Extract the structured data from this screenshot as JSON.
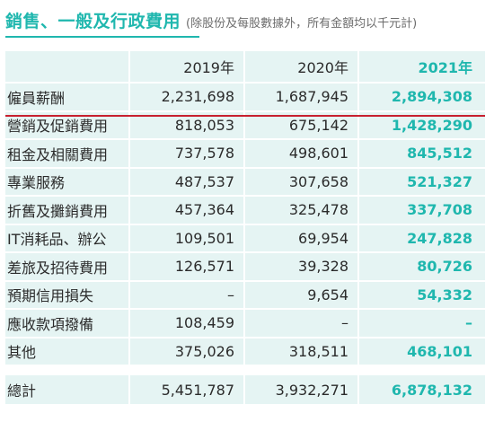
{
  "heading": {
    "title": "銷售、一般及行政費用",
    "subtitle": "(除股份及每股數據外，所有金額均以千元計)"
  },
  "table": {
    "columns": [
      "",
      "2019年",
      "2020年",
      "2021年"
    ],
    "rows": [
      {
        "label": "僱員薪酬",
        "y2019": "2,231,698",
        "y2020": "1,687,945",
        "y2021": "2,894,308"
      },
      {
        "label": "營銷及促銷費用",
        "y2019": "818,053",
        "y2020": "675,142",
        "y2021": "1,428,290"
      },
      {
        "label": "租金及相關費用",
        "y2019": "737,578",
        "y2020": "498,601",
        "y2021": "845,512"
      },
      {
        "label": "專業服務",
        "y2019": "487,537",
        "y2020": "307,658",
        "y2021": "521,327"
      },
      {
        "label": "折舊及攤銷費用",
        "y2019": "457,364",
        "y2020": "325,478",
        "y2021": "337,708"
      },
      {
        "label": "IT消耗品、辦公",
        "y2019": "109,501",
        "y2020": "69,954",
        "y2021": "247,828"
      },
      {
        "label": "差旅及招待費用",
        "y2019": "126,571",
        "y2020": "39,328",
        "y2021": "80,726"
      },
      {
        "label": "預期信用損失",
        "y2019": "–",
        "y2020": "9,654",
        "y2021": "54,332"
      },
      {
        "label": "應收款項撥備",
        "y2019": "108,459",
        "y2020": "–",
        "y2021": "–"
      },
      {
        "label": "其他",
        "y2019": "375,026",
        "y2020": "318,511",
        "y2021": "468,101"
      }
    ],
    "total": {
      "label": "總計",
      "y2019": "5,451,787",
      "y2020": "3,932,271",
      "y2021": "6,878,132"
    }
  },
  "colors": {
    "accent": "#1fb7ae",
    "row_background": "#e5f4f3",
    "divider_red": "#c8202f"
  }
}
